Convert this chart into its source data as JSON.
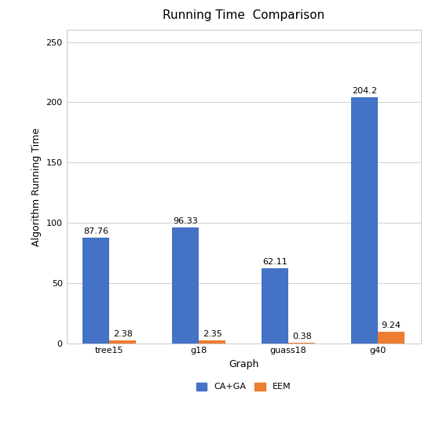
{
  "title": "Running Time  Comparison",
  "xlabel": "Graph",
  "ylabel": "Algorithm Running Time",
  "categories": [
    "tree15",
    "g18",
    "guass18",
    "g40"
  ],
  "ca_ga_values": [
    87.76,
    96.33,
    62.11,
    204.2
  ],
  "eem_values": [
    2.38,
    2.35,
    0.38,
    9.24
  ],
  "ca_ga_color": "#4472C4",
  "eem_color": "#ED7D31",
  "bar_width": 0.3,
  "ylim": [
    0,
    260
  ],
  "yticks": [
    0,
    50,
    100,
    150,
    200,
    250
  ],
  "legend_labels": [
    "CA+GA",
    "EEM"
  ],
  "title_fontsize": 11,
  "axis_fontsize": 9,
  "tick_fontsize": 8,
  "label_fontsize": 8,
  "background_color": "#ffffff",
  "plot_bg_color": "#ffffff",
  "border_color": "#cccccc"
}
